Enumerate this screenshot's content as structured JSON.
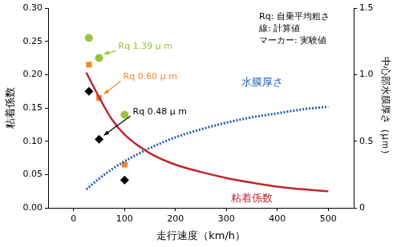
{
  "chart_data": {
    "type": "scatter",
    "x_label": "走行速度（km/h）",
    "y_label": "粘着係数",
    "y2_label": "中心部水膜厚さ（μｍ）",
    "annotations": [
      "Rq: 自乗平均粗さ",
      "線: 計算値",
      "マーカー: 実験値"
    ],
    "xlim": [
      -50,
      550
    ],
    "xticks": [
      0,
      100,
      200,
      300,
      400,
      500
    ],
    "ylim": [
      0,
      0.3
    ],
    "yticks": [
      {
        "value": 0,
        "label": "0.00"
      },
      {
        "value": 0.05,
        "label": "0.05"
      },
      {
        "value": 0.1,
        "label": "0.10"
      },
      {
        "value": 0.15,
        "label": "0.15"
      },
      {
        "value": 0.2,
        "label": "0.20"
      },
      {
        "value": 0.25,
        "label": "0.25"
      },
      {
        "value": 0.3,
        "label": "0.30"
      }
    ],
    "y2lim": [
      0,
      1.5
    ],
    "y2ticks": [
      0,
      0.5,
      {
        "value": 1.0,
        "label": "1.0"
      },
      1.5
    ],
    "grid": false,
    "series": [
      {
        "name": "粘着係数",
        "type": "line",
        "line_style": "solid",
        "color": "#c0262d",
        "x": [
          25,
          50,
          75,
          100,
          150,
          200,
          250,
          300,
          350,
          400,
          450,
          500
        ],
        "values": [
          0.203,
          0.166,
          0.133,
          0.11,
          0.082,
          0.065,
          0.054,
          0.045,
          0.038,
          0.032,
          0.028,
          0.025
        ]
      },
      {
        "name": "水膜厚さ",
        "type": "line",
        "line_style": "dotted",
        "color": "#1f5cb8",
        "axis": "y2",
        "x": [
          25,
          50,
          75,
          100,
          150,
          200,
          250,
          300,
          350,
          400,
          450,
          500
        ],
        "values": [
          0.14,
          0.22,
          0.29,
          0.35,
          0.45,
          0.53,
          0.59,
          0.64,
          0.68,
          0.71,
          0.74,
          0.76
        ]
      },
      {
        "name": "Rq 1.39 μ m",
        "type": "scatter",
        "marker": "circle",
        "color": "#9bc23c",
        "x": [
          30,
          50,
          100
        ],
        "values": [
          0.255,
          0.225,
          0.14
        ]
      },
      {
        "name": "Rq 0.60 μ m",
        "type": "scatter",
        "marker": "square",
        "color": "#f0882a",
        "x": [
          30,
          50,
          100
        ],
        "values": [
          0.215,
          0.165,
          0.065
        ]
      },
      {
        "name": "Rq 0.48 μ m",
        "type": "scatter",
        "marker": "diamond",
        "color": "#000000",
        "x": [
          30,
          50,
          100
        ],
        "values": [
          0.175,
          0.103,
          0.042
        ]
      }
    ]
  }
}
